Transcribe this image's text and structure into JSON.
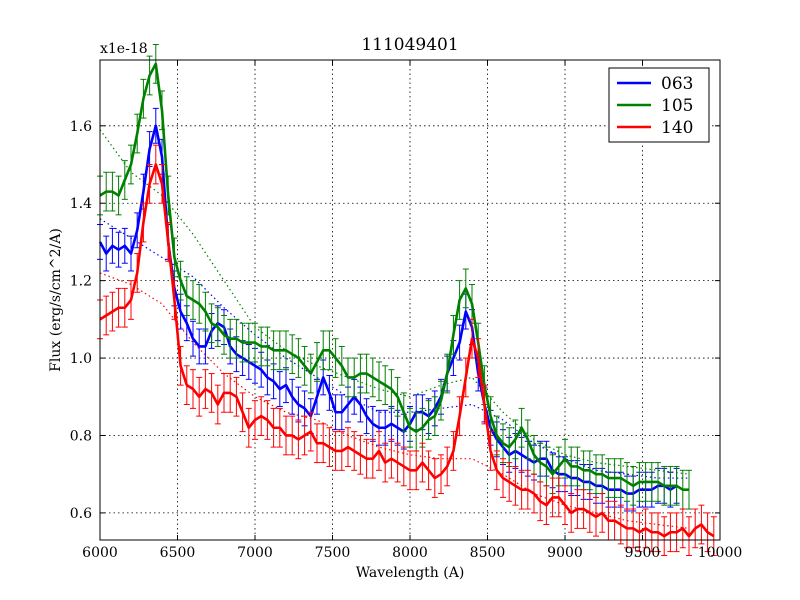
{
  "chart_data": {
    "type": "line",
    "title": "111049401",
    "xlabel": "Wavelength (A)",
    "ylabel": "Flux (erg/s/cm^2/A)",
    "offset_label": "x1e-18",
    "xlim": [
      6000,
      10000
    ],
    "ylim": [
      0.53,
      1.77
    ],
    "xticks": [
      6000,
      6500,
      7000,
      7500,
      8000,
      8500,
      9000,
      9500,
      10000
    ],
    "yticks": [
      0.6,
      0.8,
      1.0,
      1.2,
      1.4,
      1.6
    ],
    "ytick_labels": [
      "0.6",
      "0.8",
      "1.0",
      "1.2",
      "1.4",
      "1.6"
    ],
    "grid": true,
    "legend_position": "top-right",
    "series": [
      {
        "name": "063",
        "color": "#0000ff",
        "error": 0.045,
        "x": [
          6000,
          6040,
          6080,
          6120,
          6160,
          6200,
          6240,
          6280,
          6320,
          6360,
          6400,
          6440,
          6480,
          6520,
          6560,
          6600,
          6640,
          6680,
          6720,
          6760,
          6800,
          6840,
          6880,
          6920,
          6960,
          7000,
          7040,
          7080,
          7120,
          7160,
          7200,
          7240,
          7280,
          7320,
          7360,
          7400,
          7440,
          7480,
          7520,
          7560,
          7600,
          7640,
          7680,
          7720,
          7760,
          7800,
          7840,
          7880,
          7920,
          7960,
          8000,
          8040,
          8080,
          8120,
          8160,
          8200,
          8240,
          8280,
          8320,
          8360,
          8400,
          8440,
          8480,
          8520,
          8560,
          8600,
          8640,
          8680,
          8720,
          8760,
          8800,
          8840,
          8880,
          8920,
          8960,
          9000,
          9040,
          9080,
          9120,
          9160,
          9200,
          9240,
          9280,
          9320,
          9360,
          9400,
          9440,
          9480,
          9520,
          9560,
          9600,
          9640,
          9680,
          9720
        ],
        "y": [
          1.3,
          1.27,
          1.29,
          1.28,
          1.29,
          1.27,
          1.33,
          1.43,
          1.54,
          1.6,
          1.52,
          1.3,
          1.18,
          1.12,
          1.09,
          1.05,
          1.03,
          1.03,
          1.07,
          1.09,
          1.08,
          1.03,
          1.01,
          1.0,
          0.99,
          0.98,
          0.97,
          0.95,
          0.94,
          0.92,
          0.93,
          0.9,
          0.88,
          0.87,
          0.85,
          0.9,
          0.95,
          0.91,
          0.86,
          0.86,
          0.88,
          0.9,
          0.88,
          0.85,
          0.83,
          0.82,
          0.82,
          0.83,
          0.82,
          0.81,
          0.83,
          0.86,
          0.86,
          0.85,
          0.87,
          0.9,
          0.96,
          1.0,
          1.04,
          1.12,
          1.08,
          0.96,
          0.88,
          0.82,
          0.79,
          0.77,
          0.75,
          0.76,
          0.75,
          0.74,
          0.73,
          0.74,
          0.74,
          0.71,
          0.7,
          0.7,
          0.69,
          0.69,
          0.68,
          0.68,
          0.67,
          0.67,
          0.66,
          0.66,
          0.66,
          0.65,
          0.65,
          0.66,
          0.66,
          0.66,
          0.67,
          0.67,
          0.66,
          0.67
        ]
      },
      {
        "name": "105",
        "color": "#008000",
        "error": 0.05,
        "x": [
          6000,
          6040,
          6080,
          6120,
          6160,
          6200,
          6240,
          6280,
          6320,
          6360,
          6400,
          6440,
          6480,
          6520,
          6560,
          6600,
          6640,
          6680,
          6720,
          6760,
          6800,
          6840,
          6880,
          6920,
          6960,
          7000,
          7040,
          7080,
          7120,
          7160,
          7200,
          7240,
          7280,
          7320,
          7360,
          7400,
          7440,
          7480,
          7520,
          7560,
          7600,
          7640,
          7680,
          7720,
          7760,
          7800,
          7840,
          7880,
          7920,
          7960,
          8000,
          8040,
          8080,
          8120,
          8160,
          8200,
          8240,
          8280,
          8320,
          8360,
          8400,
          8440,
          8480,
          8520,
          8560,
          8600,
          8640,
          8680,
          8720,
          8760,
          8800,
          8840,
          8880,
          8920,
          8960,
          9000,
          9040,
          9080,
          9120,
          9160,
          9200,
          9240,
          9280,
          9320,
          9360,
          9400,
          9440,
          9480,
          9520,
          9560,
          9600,
          9640,
          9680,
          9720,
          9760,
          9800
        ],
        "y": [
          1.42,
          1.43,
          1.43,
          1.42,
          1.46,
          1.5,
          1.58,
          1.67,
          1.73,
          1.76,
          1.64,
          1.42,
          1.26,
          1.2,
          1.16,
          1.15,
          1.14,
          1.12,
          1.09,
          1.08,
          1.06,
          1.05,
          1.05,
          1.04,
          1.04,
          1.04,
          1.03,
          1.03,
          1.02,
          1.02,
          1.02,
          1.01,
          1.0,
          0.98,
          0.96,
          0.99,
          1.02,
          1.02,
          1.0,
          0.98,
          0.95,
          0.95,
          0.96,
          0.96,
          0.95,
          0.94,
          0.93,
          0.92,
          0.9,
          0.86,
          0.82,
          0.81,
          0.82,
          0.84,
          0.85,
          0.89,
          0.96,
          1.06,
          1.15,
          1.18,
          1.14,
          1.04,
          0.93,
          0.85,
          0.8,
          0.78,
          0.77,
          0.79,
          0.82,
          0.79,
          0.75,
          0.73,
          0.72,
          0.7,
          0.72,
          0.74,
          0.72,
          0.72,
          0.71,
          0.71,
          0.7,
          0.7,
          0.69,
          0.69,
          0.69,
          0.68,
          0.67,
          0.68,
          0.68,
          0.68,
          0.68,
          0.67,
          0.67,
          0.67,
          0.66,
          0.66
        ]
      },
      {
        "name": "140",
        "color": "#ff0000",
        "error": 0.05,
        "x": [
          6000,
          6040,
          6080,
          6120,
          6160,
          6200,
          6240,
          6280,
          6320,
          6360,
          6400,
          6440,
          6480,
          6520,
          6560,
          6600,
          6640,
          6680,
          6720,
          6760,
          6800,
          6840,
          6880,
          6920,
          6960,
          7000,
          7040,
          7080,
          7120,
          7160,
          7200,
          7240,
          7280,
          7320,
          7360,
          7400,
          7440,
          7480,
          7520,
          7560,
          7600,
          7640,
          7680,
          7720,
          7760,
          7800,
          7840,
          7880,
          7920,
          7960,
          8000,
          8040,
          8080,
          8120,
          8160,
          8200,
          8240,
          8280,
          8320,
          8360,
          8400,
          8440,
          8480,
          8520,
          8560,
          8600,
          8640,
          8680,
          8720,
          8760,
          8800,
          8840,
          8880,
          8920,
          8960,
          9000,
          9040,
          9080,
          9120,
          9160,
          9200,
          9240,
          9280,
          9320,
          9360,
          9400,
          9440,
          9480,
          9520,
          9560,
          9600,
          9640,
          9680,
          9720,
          9760,
          9800,
          9840,
          9880,
          9920,
          9960
        ],
        "y": [
          1.1,
          1.11,
          1.12,
          1.13,
          1.13,
          1.15,
          1.22,
          1.35,
          1.45,
          1.5,
          1.45,
          1.3,
          1.15,
          0.98,
          0.93,
          0.92,
          0.9,
          0.92,
          0.91,
          0.88,
          0.91,
          0.91,
          0.9,
          0.86,
          0.82,
          0.84,
          0.85,
          0.84,
          0.82,
          0.82,
          0.8,
          0.8,
          0.79,
          0.8,
          0.81,
          0.78,
          0.78,
          0.77,
          0.76,
          0.76,
          0.77,
          0.76,
          0.75,
          0.74,
          0.74,
          0.76,
          0.73,
          0.74,
          0.73,
          0.72,
          0.71,
          0.71,
          0.73,
          0.71,
          0.69,
          0.7,
          0.72,
          0.76,
          0.85,
          0.95,
          1.05,
          1.0,
          0.88,
          0.76,
          0.71,
          0.69,
          0.68,
          0.67,
          0.66,
          0.66,
          0.65,
          0.63,
          0.62,
          0.64,
          0.64,
          0.62,
          0.6,
          0.61,
          0.61,
          0.6,
          0.59,
          0.6,
          0.58,
          0.58,
          0.57,
          0.56,
          0.56,
          0.55,
          0.56,
          0.55,
          0.55,
          0.54,
          0.55,
          0.55,
          0.56,
          0.54,
          0.56,
          0.57,
          0.55,
          0.54
        ]
      }
    ],
    "models": [
      {
        "name": "063-model",
        "color": "#0000ff",
        "x": [
          6000,
          6200,
          6400,
          6600,
          6800,
          7000,
          7200,
          7400,
          7600,
          7800,
          8000,
          8200,
          8400,
          8600,
          8800,
          9000,
          9200,
          9400,
          9600,
          9800
        ],
        "y": [
          1.36,
          1.31,
          1.26,
          1.21,
          1.13,
          1.06,
          1.0,
          0.95,
          0.9,
          0.86,
          0.86,
          0.87,
          0.88,
          0.84,
          0.78,
          0.74,
          0.71,
          0.7,
          0.69,
          0.69
        ]
      },
      {
        "name": "105-model",
        "color": "#008000",
        "x": [
          6000,
          6200,
          6400,
          6600,
          6800,
          7000,
          7200,
          7400,
          7600,
          7800,
          8000,
          8200,
          8400,
          8600,
          8800,
          9000,
          9200,
          9400,
          9600,
          9800
        ],
        "y": [
          1.59,
          1.48,
          1.42,
          1.32,
          1.2,
          1.08,
          1.02,
          0.98,
          0.95,
          0.92,
          0.9,
          0.93,
          0.95,
          0.86,
          0.79,
          0.75,
          0.73,
          0.72,
          0.71,
          0.7
        ]
      },
      {
        "name": "140-model",
        "color": "#ff0000",
        "x": [
          6000,
          6200,
          6400,
          6600,
          6800,
          7000,
          7200,
          7400,
          7600,
          7800,
          8000,
          8200,
          8400,
          8600,
          8800,
          9000,
          9200,
          9400,
          9600,
          9800
        ],
        "y": [
          1.22,
          1.19,
          1.14,
          1.04,
          0.96,
          0.9,
          0.86,
          0.84,
          0.8,
          0.77,
          0.75,
          0.74,
          0.74,
          0.7,
          0.65,
          0.62,
          0.6,
          0.58,
          0.57,
          0.56
        ]
      }
    ]
  }
}
